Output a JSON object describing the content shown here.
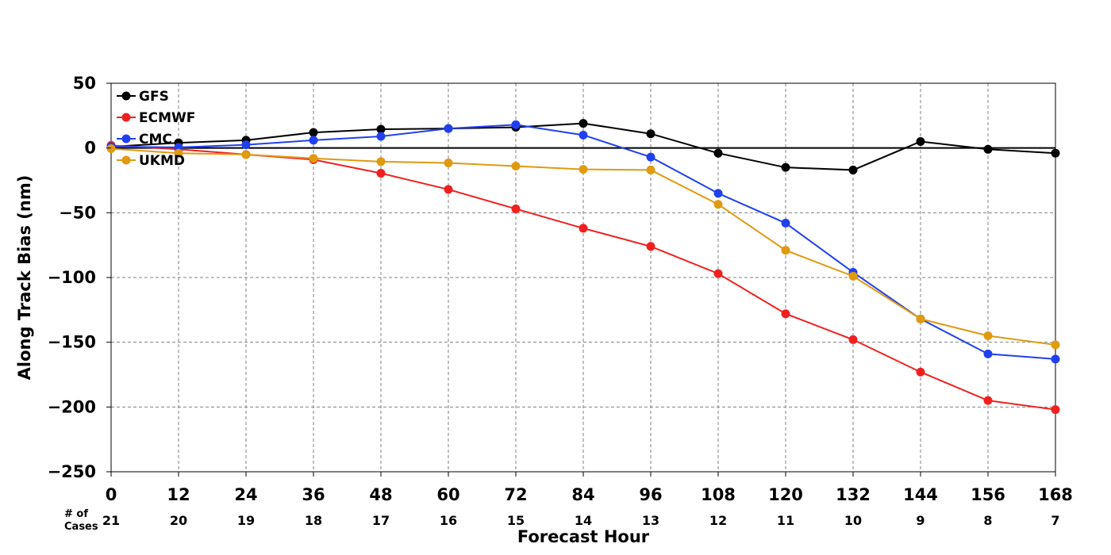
{
  "chart_data": {
    "type": "line",
    "xlabel": "Forecast Hour",
    "ylabel": "Along Track Bias (nm)",
    "xlim": [
      0,
      168
    ],
    "ylim": [
      -250,
      50
    ],
    "x": [
      0,
      12,
      24,
      36,
      48,
      60,
      72,
      84,
      96,
      108,
      120,
      132,
      144,
      156,
      168
    ],
    "x_ticks": [
      "0",
      "12",
      "24",
      "36",
      "48",
      "60",
      "72",
      "84",
      "96",
      "108",
      "120",
      "132",
      "144",
      "156",
      "168"
    ],
    "y_ticks": [
      50,
      0,
      -50,
      -100,
      -150,
      -200,
      -250
    ],
    "y_tick_labels": [
      "50",
      "0",
      "−50",
      "−100",
      "−150",
      "−200",
      "−250"
    ],
    "grid": true,
    "legend_position": "top-left",
    "cases_label_line1": "# of",
    "cases_label_line2": "Cases",
    "cases": [
      "21",
      "20",
      "19",
      "18",
      "17",
      "16",
      "15",
      "14",
      "13",
      "12",
      "11",
      "10",
      "9",
      "8",
      "7"
    ],
    "series": [
      {
        "name": "GFS",
        "color": "#000000",
        "values": [
          1,
          4,
          6,
          12,
          14.5,
          15,
          16,
          19,
          11,
          -4,
          -15,
          -17,
          5,
          -1,
          -4
        ]
      },
      {
        "name": "ECMWF",
        "color": "#f02020",
        "values": [
          2,
          -1,
          -5,
          -9,
          -19.5,
          -32,
          -47,
          -62,
          -76,
          -97,
          -128,
          -148,
          -173,
          -195,
          -202
        ]
      },
      {
        "name": "CMC",
        "color": "#2040f0",
        "values": [
          1,
          0.5,
          2.5,
          6,
          9,
          15,
          18,
          10,
          -7,
          -35,
          -58,
          -96,
          -132,
          -159,
          -163
        ]
      },
      {
        "name": "UKMD",
        "color": "#e09a10",
        "values": [
          -0.5,
          -4,
          -5,
          -8,
          -10.5,
          -11.5,
          -14,
          -16.5,
          -17,
          -43.5,
          -79,
          -99,
          -132,
          -145,
          -152
        ]
      }
    ]
  }
}
